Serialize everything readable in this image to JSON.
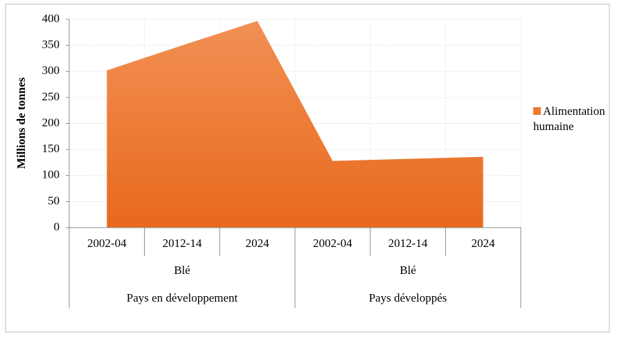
{
  "chart_data": {
    "type": "area",
    "y_label": "Millions de tonnes",
    "categories": [
      "2002-04",
      "2012-14",
      "2024",
      "2002-04",
      "2012-14",
      "2024"
    ],
    "category_groups": [
      [
        "Blé",
        "Blé"
      ],
      [
        "Pays en développement",
        "Pays développés"
      ]
    ],
    "series": [
      {
        "name": "Alimentation humaine",
        "color": "#ee7a2d",
        "values": [
          302,
          350,
          397,
          128,
          132,
          136
        ]
      }
    ],
    "ylim": [
      0,
      400
    ],
    "yticks": [
      0,
      50,
      100,
      150,
      200,
      250,
      300,
      350,
      400
    ],
    "grid": true,
    "legend": "right"
  }
}
